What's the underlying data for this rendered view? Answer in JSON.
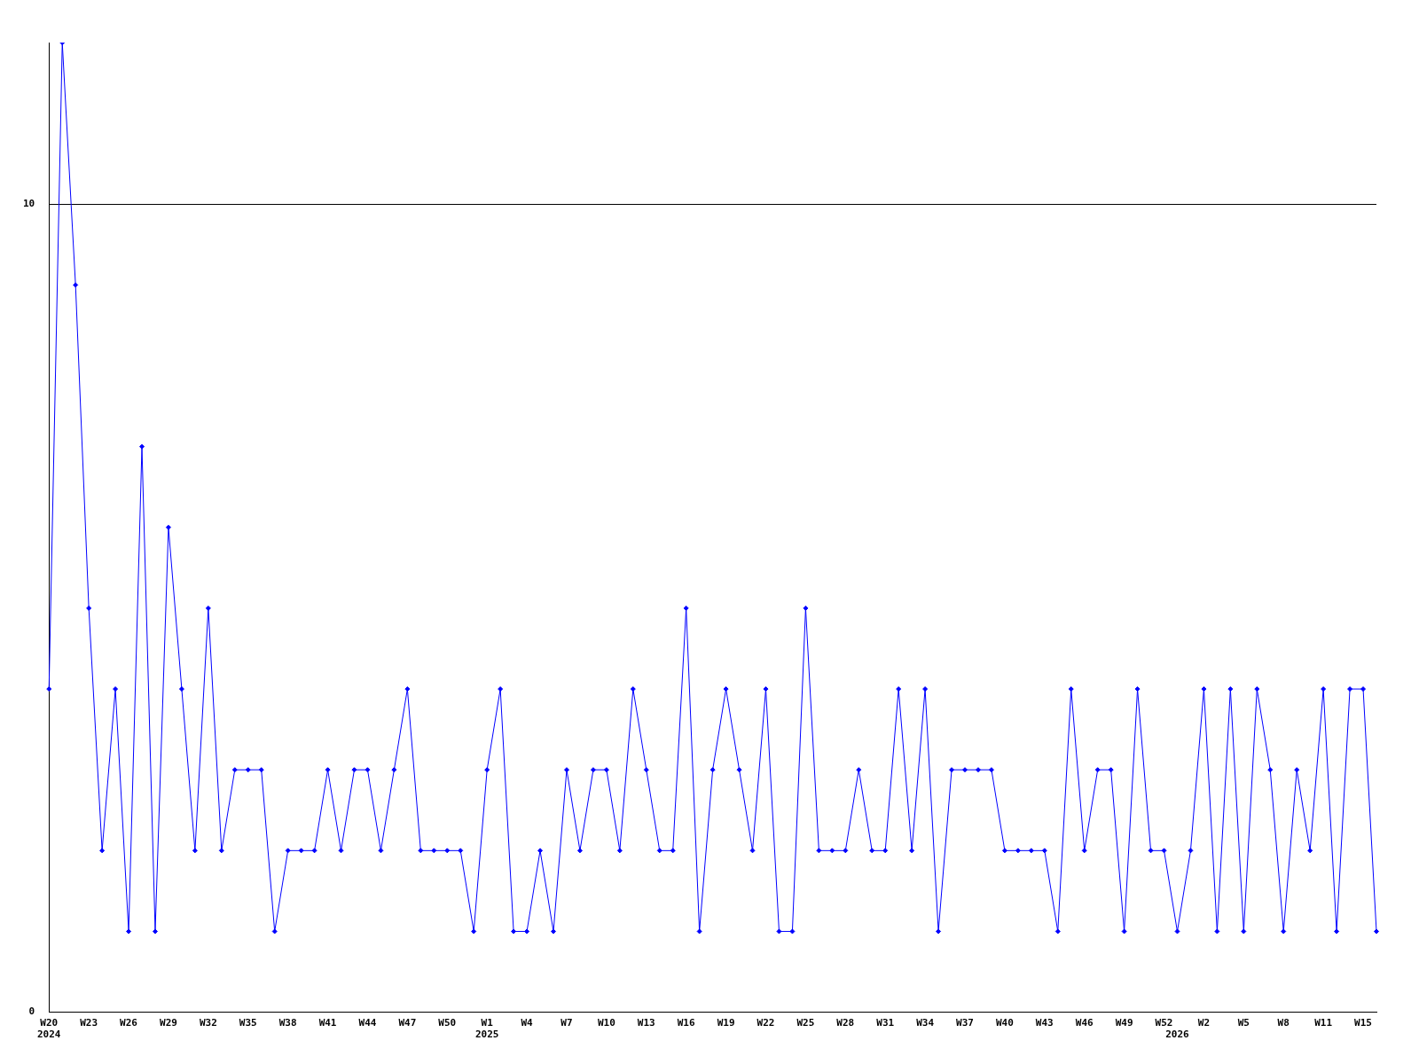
{
  "chart_data": {
    "type": "line",
    "categories": [
      "W20\n2024",
      null,
      null,
      "W23",
      null,
      null,
      "W26",
      null,
      null,
      "W29",
      null,
      null,
      "W32",
      null,
      null,
      "W35",
      null,
      null,
      "W38",
      null,
      null,
      "W41",
      null,
      null,
      "W44",
      null,
      null,
      "W47",
      null,
      null,
      "W50",
      null,
      null,
      "W1\n2025",
      null,
      null,
      "W4",
      null,
      null,
      "W7",
      null,
      null,
      "W10",
      null,
      null,
      "W13",
      null,
      null,
      "W16",
      null,
      null,
      "W19",
      null,
      null,
      "W22",
      null,
      null,
      "W25",
      null,
      null,
      "W28",
      null,
      null,
      "W31",
      null,
      null,
      "W34",
      null,
      null,
      "W37",
      null,
      null,
      "W40",
      null,
      null,
      "W43",
      null,
      null,
      "W46",
      null,
      null,
      "W49",
      null,
      null,
      "W52",
      "\n2026",
      null,
      "W2",
      null,
      null,
      "W5",
      null,
      null,
      "W8",
      null,
      null,
      "W11",
      null,
      null,
      "W15",
      null
    ],
    "series": [
      {
        "color": "#0000ff",
        "values": [
          4,
          12,
          9,
          5,
          2,
          4,
          1,
          7,
          1,
          6,
          4,
          2,
          5,
          2,
          3,
          3,
          3,
          1,
          2,
          2,
          2,
          3,
          2,
          3,
          3,
          2,
          3,
          4,
          2,
          2,
          2,
          2,
          1,
          3,
          4,
          1,
          1,
          2,
          1,
          3,
          2,
          3,
          3,
          2,
          4,
          3,
          2,
          2,
          5,
          1,
          3,
          4,
          3,
          2,
          4,
          1,
          1,
          5,
          2,
          2,
          2,
          3,
          2,
          2,
          4,
          2,
          4,
          1,
          3,
          3,
          3,
          3,
          2,
          2,
          2,
          2,
          1,
          4,
          2,
          3,
          3,
          1,
          4,
          2,
          2,
          1,
          2,
          4,
          1,
          4,
          1,
          4,
          3,
          1,
          3,
          2,
          4,
          1,
          4,
          4,
          1
        ]
      }
    ],
    "ylim": [
      0,
      12
    ],
    "yticks": [
      0,
      10
    ],
    "grid": "y",
    "legend": false,
    "marker": "diamond",
    "line_style": "solid"
  }
}
